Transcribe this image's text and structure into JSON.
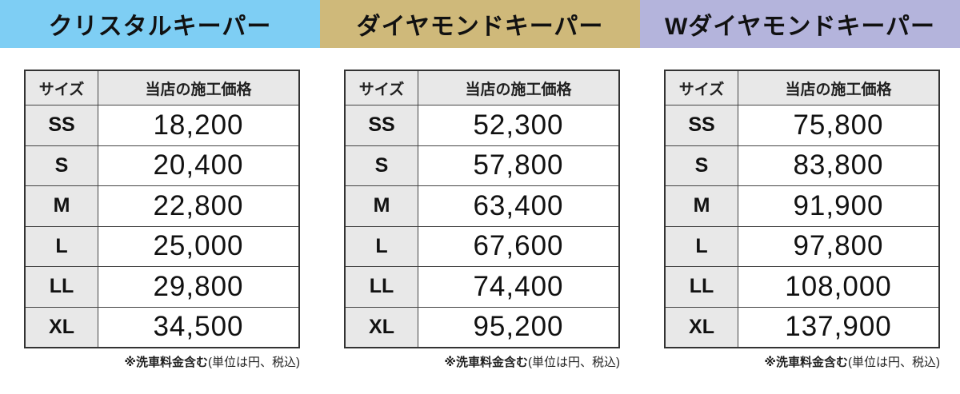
{
  "column_headers": {
    "size": "サイズ",
    "price": "当店の施工価格"
  },
  "note": {
    "bold": "※洗車料金含む",
    "normal": "(単位は円、税込)"
  },
  "panels": [
    {
      "title": "クリスタルキーパー",
      "color": "#7ecef4",
      "rows": [
        {
          "size": "SS",
          "price": "18,200"
        },
        {
          "size": "S",
          "price": "20,400"
        },
        {
          "size": "M",
          "price": "22,800"
        },
        {
          "size": "L",
          "price": "25,000"
        },
        {
          "size": "LL",
          "price": "29,800"
        },
        {
          "size": "XL",
          "price": "34,500"
        }
      ]
    },
    {
      "title": "ダイヤモンドキーパー",
      "color": "#cfb97a",
      "rows": [
        {
          "size": "SS",
          "price": "52,300"
        },
        {
          "size": "S",
          "price": "57,800"
        },
        {
          "size": "M",
          "price": "63,400"
        },
        {
          "size": "L",
          "price": "67,600"
        },
        {
          "size": "LL",
          "price": "74,400"
        },
        {
          "size": "XL",
          "price": "95,200"
        }
      ]
    },
    {
      "title": "Wダイヤモンドキーパー",
      "color": "#b4b4dc",
      "rows": [
        {
          "size": "SS",
          "price": "75,800"
        },
        {
          "size": "S",
          "price": "83,800"
        },
        {
          "size": "M",
          "price": "91,900"
        },
        {
          "size": "L",
          "price": "97,800"
        },
        {
          "size": "LL",
          "price": "108,000"
        },
        {
          "size": "XL",
          "price": "137,900"
        }
      ]
    }
  ]
}
